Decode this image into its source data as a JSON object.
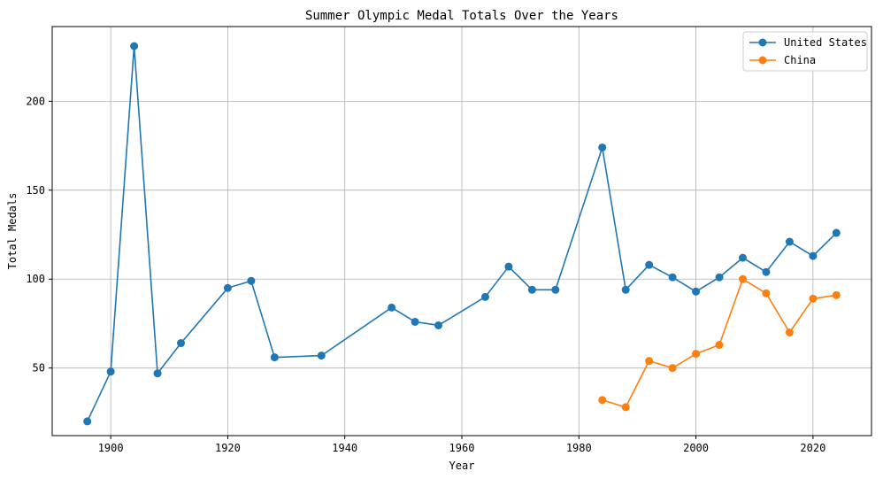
{
  "chart_data": {
    "type": "line",
    "title": "Summer Olympic Medal Totals Over the Years",
    "xlabel": "Year",
    "ylabel": "Total Medals",
    "xlim": [
      1890,
      2030
    ],
    "ylim": [
      12,
      242
    ],
    "xticks": [
      1900,
      1920,
      1940,
      1960,
      1980,
      2000,
      2020
    ],
    "yticks": [
      50,
      100,
      150,
      200
    ],
    "grid": true,
    "legend_position": "top-right",
    "series": [
      {
        "name": "United States",
        "color": "#1f77b4",
        "marker": "circle",
        "points": [
          [
            1896,
            20
          ],
          [
            1900,
            48
          ],
          [
            1904,
            231
          ],
          [
            1908,
            47
          ],
          [
            1912,
            64
          ],
          [
            1920,
            95
          ],
          [
            1924,
            99
          ],
          [
            1928,
            56
          ],
          [
            1936,
            57
          ],
          [
            1948,
            84
          ],
          [
            1952,
            76
          ],
          [
            1956,
            74
          ],
          [
            1964,
            90
          ],
          [
            1968,
            107
          ],
          [
            1972,
            94
          ],
          [
            1976,
            94
          ],
          [
            1984,
            174
          ],
          [
            1988,
            94
          ],
          [
            1992,
            108
          ],
          [
            1996,
            101
          ],
          [
            2000,
            93
          ],
          [
            2004,
            101
          ],
          [
            2008,
            112
          ],
          [
            2012,
            104
          ],
          [
            2016,
            121
          ],
          [
            2020,
            113
          ],
          [
            2024,
            126
          ]
        ]
      },
      {
        "name": "China",
        "color": "#ff7f0e",
        "marker": "circle",
        "points": [
          [
            1984,
            32
          ],
          [
            1988,
            28
          ],
          [
            1992,
            54
          ],
          [
            1996,
            50
          ],
          [
            2000,
            58
          ],
          [
            2004,
            63
          ],
          [
            2008,
            100
          ],
          [
            2012,
            92
          ],
          [
            2016,
            70
          ],
          [
            2020,
            89
          ],
          [
            2024,
            91
          ]
        ]
      }
    ]
  }
}
